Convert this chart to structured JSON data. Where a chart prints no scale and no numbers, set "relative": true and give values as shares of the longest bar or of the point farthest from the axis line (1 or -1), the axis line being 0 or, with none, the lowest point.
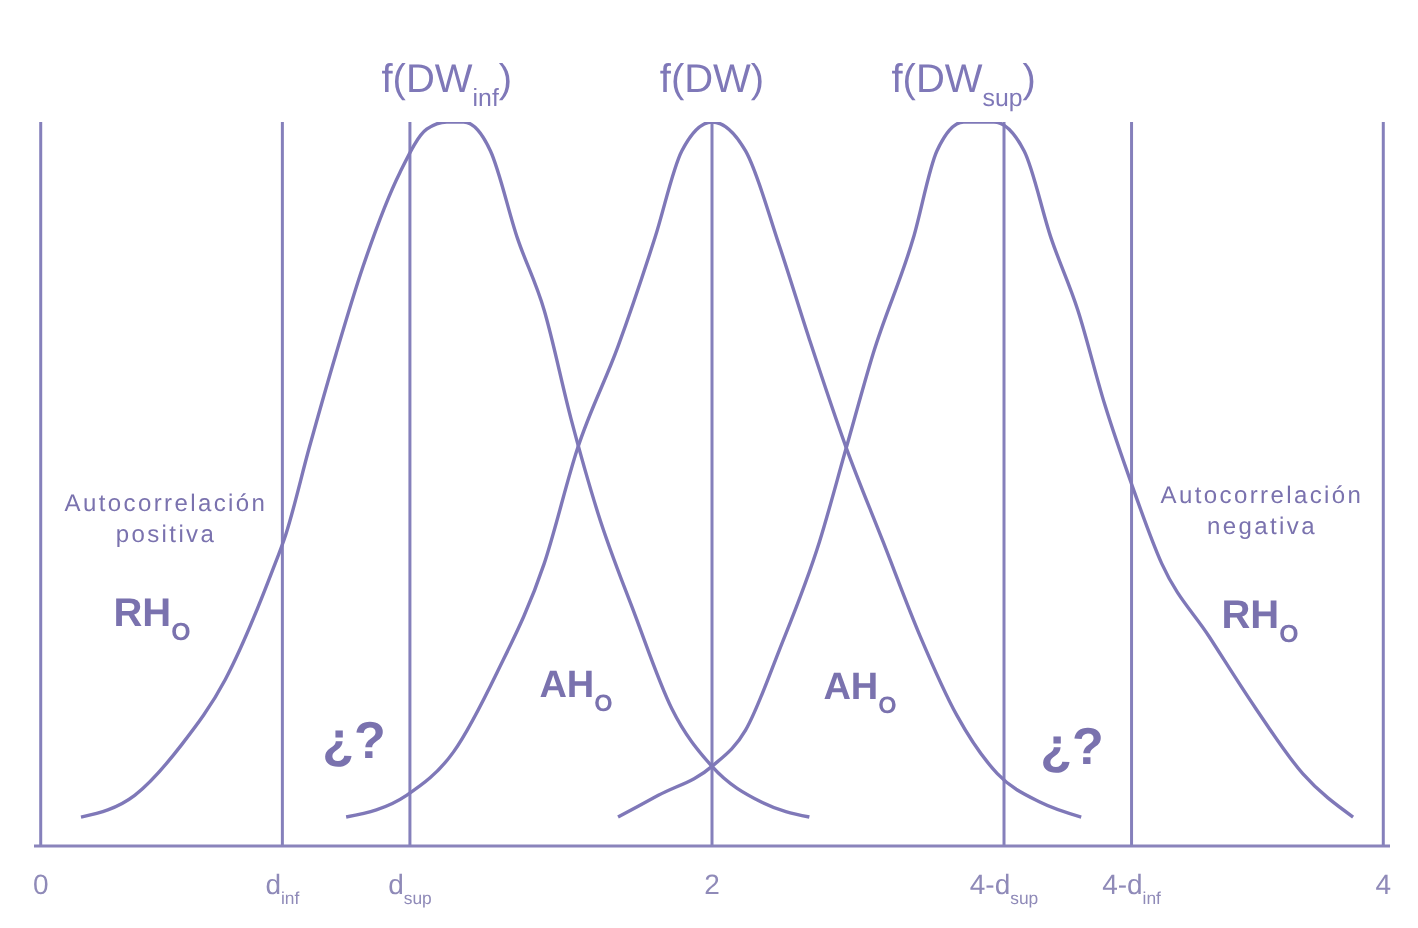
{
  "chart_data": {
    "type": "line",
    "relative": true,
    "xlim": [
      -0.02,
      4.02
    ],
    "xticks": [
      0,
      2,
      4
    ],
    "series": [
      {
        "name": "f(DW$_{inf}$)",
        "color": "#7f78b8",
        "x": [
          0.12,
          0.28,
          0.42,
          0.55,
          0.69,
          0.73,
          0.8,
          0.88,
          0.96,
          1.07,
          1.15,
          1.21,
          1.26,
          1.34,
          1.42,
          1.5,
          1.58,
          1.66,
          1.77,
          1.88,
          2.0,
          2.15,
          2.29
        ],
        "values": [
          0.04,
          0.07,
          0.14,
          0.23,
          0.38,
          0.43,
          0.55,
          0.68,
          0.8,
          0.93,
          0.99,
          1.0,
          1.0,
          0.96,
          0.84,
          0.74,
          0.59,
          0.46,
          0.32,
          0.19,
          0.11,
          0.06,
          0.04
        ]
      },
      {
        "name": "f(DW)",
        "color": "#7f78b8",
        "x": [
          0.91,
          1.09,
          1.23,
          1.36,
          1.5,
          1.6,
          1.72,
          1.83,
          1.91,
          2.0,
          2.1,
          2.2,
          2.29,
          2.4,
          2.51,
          2.62,
          2.73,
          2.85,
          2.98,
          3.1
        ],
        "values": [
          0.04,
          0.07,
          0.13,
          0.24,
          0.39,
          0.55,
          0.69,
          0.84,
          0.96,
          1.0,
          0.96,
          0.83,
          0.7,
          0.55,
          0.42,
          0.29,
          0.18,
          0.1,
          0.06,
          0.04
        ]
      },
      {
        "name": "f(DW$_{sup}$)",
        "color": "#7f78b8",
        "x": [
          1.72,
          1.84,
          2.0,
          2.1,
          2.2,
          2.32,
          2.4,
          2.48,
          2.6,
          2.67,
          2.75,
          2.84,
          2.93,
          3.01,
          3.09,
          3.17,
          3.25,
          3.34,
          3.48,
          3.62,
          3.76,
          3.91
        ],
        "values": [
          0.04,
          0.07,
          0.11,
          0.16,
          0.27,
          0.42,
          0.55,
          0.68,
          0.84,
          0.96,
          1.0,
          1.0,
          0.96,
          0.84,
          0.74,
          0.61,
          0.5,
          0.39,
          0.29,
          0.19,
          0.1,
          0.04
        ]
      }
    ],
    "ref_lines": [
      {
        "axis": "x",
        "value": 0,
        "color": "#8580bb"
      },
      {
        "axis": "x",
        "value": 0.72,
        "label": "d$_{inf}$",
        "color": "#8580bb"
      },
      {
        "axis": "x",
        "value": 1.1,
        "label": "d$_{sup}$",
        "color": "#8580bb"
      },
      {
        "axis": "x",
        "value": 2,
        "color": "#8580bb"
      },
      {
        "axis": "x",
        "value": 2.87,
        "label": "4-d$_{sup}$",
        "color": "#8580bb"
      },
      {
        "axis": "x",
        "value": 3.25,
        "label": "4-d$_{inf}$",
        "color": "#8580bb"
      },
      {
        "axis": "x",
        "value": 4,
        "color": "#8580bb"
      }
    ],
    "annotations": [
      "Autocorrelación\npositiva",
      "RH$_{O}$",
      "¿?",
      "AH$_{O}$",
      "AH$_{O}$",
      "¿?",
      "Autocorrelación\nnegativa",
      "RH$_{O}$"
    ]
  }
}
